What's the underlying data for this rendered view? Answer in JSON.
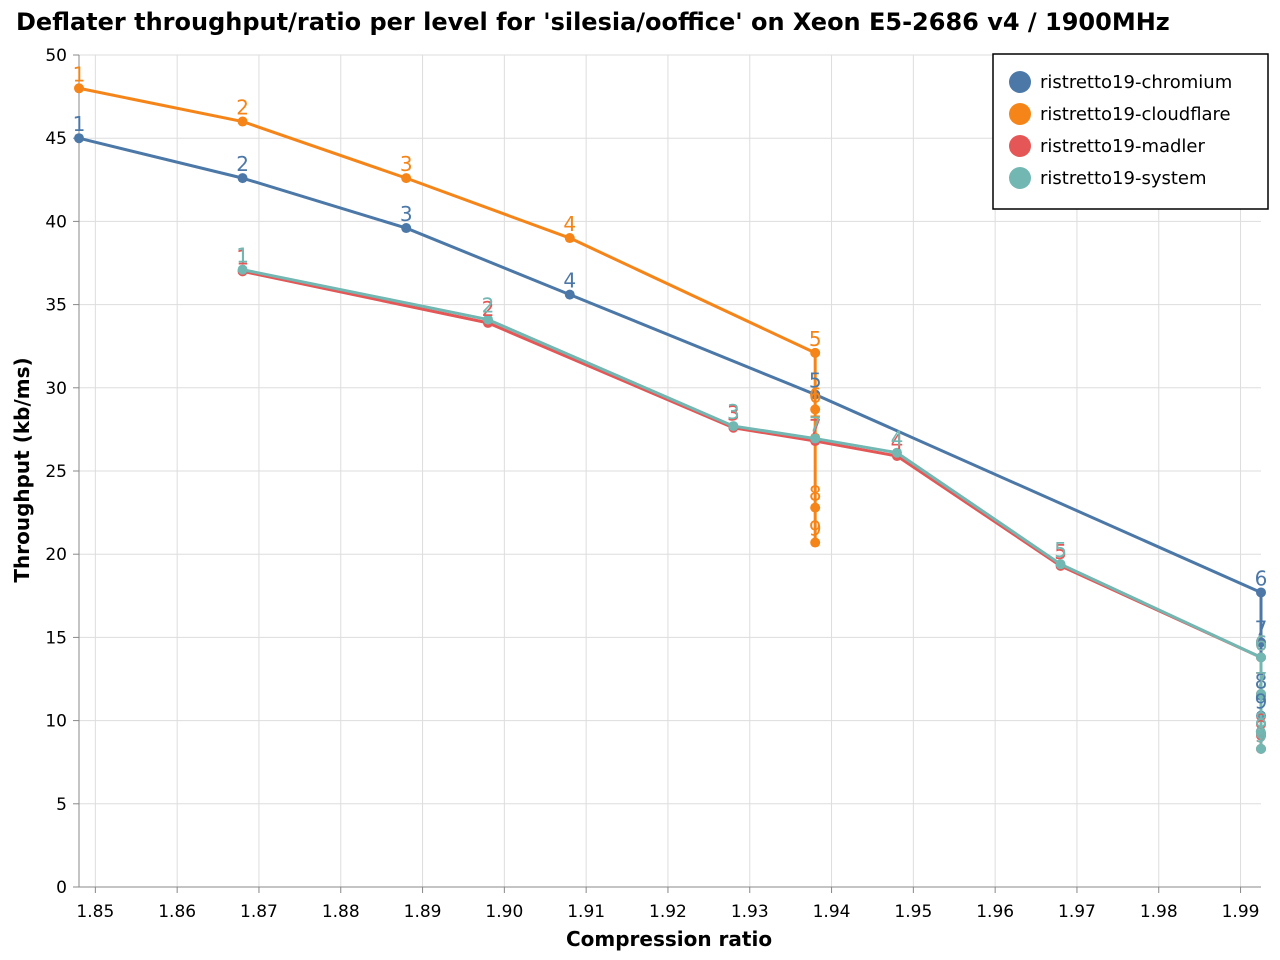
{
  "chart_data": {
    "type": "line",
    "title": "Deflater throughput/ratio per level for 'silesia/ooffice' on Xeon E5-2686 v4 / 1900MHz",
    "xlabel": "Compression ratio",
    "ylabel": "Throughput (kb/ms)",
    "xlim": [
      1.848,
      1.9925
    ],
    "ylim": [
      0,
      50
    ],
    "x_ticks": [
      "1.85",
      "1.86",
      "1.87",
      "1.88",
      "1.89",
      "1.90",
      "1.91",
      "1.92",
      "1.93",
      "1.94",
      "1.95",
      "1.96",
      "1.97",
      "1.98",
      "1.99"
    ],
    "y_ticks": [
      "0",
      "5",
      "10",
      "15",
      "20",
      "25",
      "30",
      "35",
      "40",
      "45",
      "50"
    ],
    "grid": true,
    "legend_position": "top-right",
    "series": [
      {
        "name": "ristretto19-chromium",
        "color": "#4c78a8",
        "points": [
          {
            "level": "1",
            "x": 1.848,
            "y": 45.0
          },
          {
            "level": "2",
            "x": 1.868,
            "y": 42.6
          },
          {
            "level": "3",
            "x": 1.888,
            "y": 39.6
          },
          {
            "level": "4",
            "x": 1.908,
            "y": 35.6
          },
          {
            "level": "5",
            "x": 1.938,
            "y": 29.6
          },
          {
            "level": "6",
            "x": 1.9925,
            "y": 17.7
          },
          {
            "level": "7",
            "x": 1.9925,
            "y": 14.7
          },
          {
            "level": "8",
            "x": 1.9925,
            "y": 11.5
          },
          {
            "level": "9",
            "x": 1.9925,
            "y": 10.3
          }
        ]
      },
      {
        "name": "ristretto19-cloudflare",
        "color": "#f58518",
        "points": [
          {
            "level": "1",
            "x": 1.848,
            "y": 48.0
          },
          {
            "level": "2",
            "x": 1.868,
            "y": 46.0
          },
          {
            "level": "3",
            "x": 1.888,
            "y": 42.6
          },
          {
            "level": "4",
            "x": 1.908,
            "y": 39.0
          },
          {
            "level": "5",
            "x": 1.938,
            "y": 32.1
          },
          {
            "level": "6",
            "x": 1.938,
            "y": 28.7
          },
          {
            "level": "7",
            "x": 1.938,
            "y": 27.0
          },
          {
            "level": "8",
            "x": 1.938,
            "y": 22.8
          },
          {
            "level": "9",
            "x": 1.938,
            "y": 20.7
          }
        ]
      },
      {
        "name": "ristretto19-madler",
        "color": "#e45756",
        "points": [
          {
            "level": "1",
            "x": 1.868,
            "y": 37.0
          },
          {
            "level": "2",
            "x": 1.898,
            "y": 33.9
          },
          {
            "level": "3",
            "x": 1.928,
            "y": 27.6
          },
          {
            "level": "7",
            "x": 1.938,
            "y": 26.8
          },
          {
            "level": "4",
            "x": 1.948,
            "y": 25.9
          },
          {
            "level": "5",
            "x": 1.968,
            "y": 19.3
          },
          {
            "level": "6",
            "x": 1.9925,
            "y": 13.8
          },
          {
            "level": "7",
            "x": 1.9925,
            "y": 11.6
          },
          {
            "level": "8",
            "x": 1.9925,
            "y": 9.1
          },
          {
            "level": "9",
            "x": 1.9925,
            "y": 8.3
          }
        ]
      },
      {
        "name": "ristretto19-system",
        "color": "#72b7b2",
        "points": [
          {
            "level": "1",
            "x": 1.868,
            "y": 37.1
          },
          {
            "level": "2",
            "x": 1.898,
            "y": 34.1
          },
          {
            "level": "3",
            "x": 1.928,
            "y": 27.7
          },
          {
            "level": "7",
            "x": 1.938,
            "y": 26.95
          },
          {
            "level": "4",
            "x": 1.948,
            "y": 26.1
          },
          {
            "level": "5",
            "x": 1.968,
            "y": 19.4
          },
          {
            "level": "6",
            "x": 1.9925,
            "y": 13.8
          },
          {
            "level": "7",
            "x": 1.9925,
            "y": 11.6
          },
          {
            "level": "8",
            "x": 1.9925,
            "y": 9.2
          },
          {
            "level": "9",
            "x": 1.9925,
            "y": 8.3
          }
        ]
      }
    ]
  }
}
